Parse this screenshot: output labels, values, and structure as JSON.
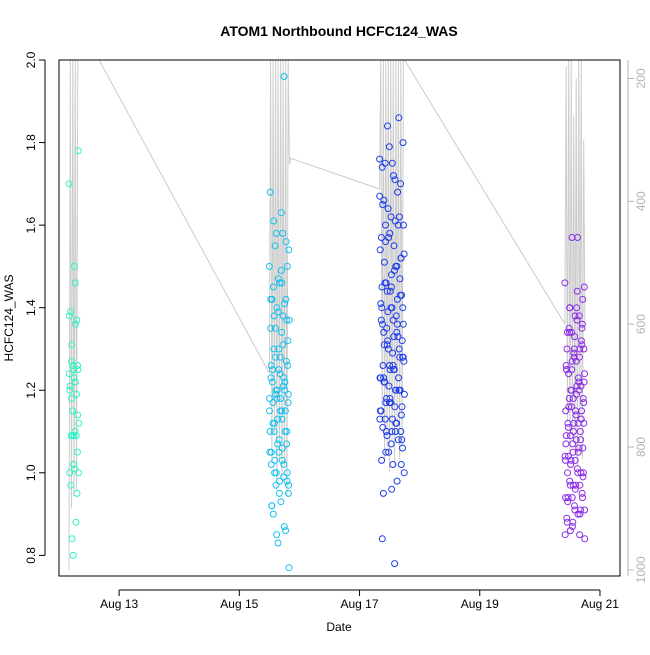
{
  "chart_data": {
    "type": "scatter",
    "title": "ATOM1 Northbound HCFC124_WAS",
    "xlabel": "Date",
    "ylabel": "HCFC124_WAS",
    "x_axis": {
      "type": "date",
      "range": [
        "2016-08-12T00:00",
        "2016-08-21T08:00"
      ],
      "ticks": [
        {
          "value": "2016-08-13",
          "label": "Aug 13"
        },
        {
          "value": "2016-08-15",
          "label": "Aug 15"
        },
        {
          "value": "2016-08-17",
          "label": "Aug 17"
        },
        {
          "value": "2016-08-19",
          "label": "Aug 19"
        },
        {
          "value": "2016-08-21",
          "label": "Aug 21"
        }
      ]
    },
    "y_axis": {
      "range": [
        0.75,
        2.0
      ],
      "ticks": [
        0.8,
        1.0,
        1.2,
        1.4,
        1.6,
        1.8,
        2.0
      ]
    },
    "y2_axis": {
      "description": "pressure (hPa), inverted, gray",
      "range": [
        1010,
        170
      ],
      "ticks": [
        200,
        400,
        600,
        800,
        1000
      ],
      "color": "#b4b4b4"
    },
    "grid": false,
    "legend": "none",
    "flights": [
      {
        "color": "#2ef3c4",
        "t_start": "2016-08-12T04:00",
        "t_end": "2016-08-12T08:00",
        "values": [
          1.7,
          1.46,
          1.27,
          1.26,
          1.25,
          1.2,
          1.09,
          1.09,
          1.0,
          1.01,
          0.97,
          0.95,
          0.8,
          1.38,
          1.36,
          1.31,
          1.25,
          1.23,
          1.21,
          1.19,
          1.15,
          1.12,
          1.1,
          1.09,
          1.05,
          1.02,
          1.0,
          0.88,
          0.84,
          1.78,
          1.5,
          1.39,
          1.37,
          1.26,
          1.24,
          1.22,
          1.18,
          1.14,
          1.09
        ]
      },
      {
        "color": "#14c1f0",
        "t_start": "2016-08-15T12:00",
        "t_end": "2016-08-15T20:00",
        "values": [
          1.5,
          1.46,
          1.38,
          1.37,
          1.3,
          1.26,
          1.23,
          1.2,
          1.19,
          1.18,
          1.17,
          1.15,
          1.13,
          1.1,
          1.06,
          1.03,
          1.0,
          0.98,
          0.92,
          0.87,
          0.85,
          0.77,
          1.63,
          1.61,
          1.56,
          1.47,
          1.42,
          1.38,
          1.35,
          1.32,
          1.28,
          1.25,
          1.22,
          1.2,
          1.18,
          1.15,
          1.12,
          1.1,
          1.08,
          1.05,
          1.02,
          1.0,
          0.97,
          0.93,
          0.9,
          0.86,
          0.83,
          1.68,
          1.58,
          1.55,
          1.5,
          1.46,
          1.42,
          1.41,
          1.4,
          1.37,
          1.34,
          1.3,
          1.27,
          1.25,
          1.23,
          1.21,
          1.19,
          1.17,
          1.15,
          1.12,
          1.1,
          1.07,
          1.05,
          1.03,
          1.0,
          0.98,
          0.95,
          0.92,
          1.96,
          1.58,
          1.54,
          1.49,
          1.45,
          1.42,
          1.39,
          1.35,
          1.31,
          1.28,
          1.26,
          1.24,
          1.22,
          1.2,
          1.18,
          1.15,
          1.13,
          1.1,
          1.07,
          1.05,
          1.02,
          0.99,
          0.97,
          0.95
        ]
      },
      {
        "color": "#1e3ceb",
        "t_start": "2016-08-17T08:00",
        "t_end": "2016-08-17T18:00",
        "values": [
          1.76,
          1.71,
          1.6,
          1.52,
          1.45,
          1.4,
          1.36,
          1.32,
          1.28,
          1.25,
          1.22,
          1.2,
          1.18,
          1.15,
          1.12,
          1.1,
          1.08,
          1.75,
          1.65,
          1.6,
          1.57,
          1.53,
          1.49,
          1.46,
          1.43,
          1.4,
          1.37,
          1.34,
          1.31,
          1.28,
          1.26,
          1.23,
          1.2,
          1.17,
          1.13,
          1.1,
          1.05,
          1.02,
          0.96,
          1.74,
          1.68,
          1.64,
          1.6,
          1.55,
          1.51,
          1.47,
          1.44,
          1.41,
          1.38,
          1.35,
          1.32,
          1.29,
          1.26,
          1.23,
          1.21,
          1.19,
          1.16,
          1.13,
          1.1,
          1.07,
          1.03,
          0.98,
          1.84,
          1.8,
          1.72,
          1.66,
          1.62,
          1.58,
          1.54,
          1.5,
          1.46,
          1.43,
          1.4,
          1.36,
          1.33,
          1.3,
          1.27,
          1.25,
          1.22,
          1.2,
          1.17,
          1.15,
          1.12,
          1.09,
          1.06,
          1.02,
          0.95,
          1.86,
          1.79,
          1.67,
          1.61,
          1.56,
          1.52,
          1.48,
          1.45,
          1.42,
          1.39,
          1.36,
          1.33,
          1.31,
          1.28,
          1.25,
          1.23,
          1.2,
          1.18,
          1.16,
          1.13,
          1.11,
          1.08,
          1.05,
          1.0,
          0.78,
          1.75,
          1.7,
          1.62,
          1.57,
          1.5,
          1.44,
          1.4,
          1.37,
          1.34,
          1.3,
          1.26,
          1.23,
          1.2,
          1.17,
          1.14,
          1.1,
          0.84
        ]
      },
      {
        "color": "#8b2ce8",
        "t_start": "2016-08-20T10:00",
        "t_end": "2016-08-20T18:00",
        "values": [
          1.46,
          1.44,
          1.4,
          1.35,
          1.3,
          1.25,
          1.2,
          1.16,
          1.12,
          1.08,
          1.04,
          1.0,
          0.97,
          0.94,
          0.9,
          0.86,
          1.42,
          1.38,
          1.34,
          1.3,
          1.27,
          1.24,
          1.21,
          1.18,
          1.15,
          1.12,
          1.09,
          1.06,
          1.03,
          1.0,
          0.97,
          0.94,
          0.91,
          0.88,
          0.85,
          1.57,
          1.4,
          1.36,
          1.33,
          1.3,
          1.28,
          1.25,
          1.22,
          1.19,
          1.16,
          1.13,
          1.1,
          1.07,
          1.05,
          1.02,
          0.99,
          0.96,
          0.93,
          0.9,
          0.87,
          0.84,
          1.37,
          1.34,
          1.31,
          1.28,
          1.25,
          1.22,
          1.2,
          1.17,
          1.14,
          1.11,
          1.08,
          1.05,
          1.03,
          1.0,
          0.97,
          0.94,
          0.91,
          0.88,
          0.85,
          1.57,
          1.45,
          1.4,
          1.35,
          1.32,
          1.29,
          1.26,
          1.23,
          1.2,
          1.18,
          1.15,
          1.12,
          1.1,
          1.07,
          1.04,
          1.01,
          0.98,
          0.95,
          0.92,
          0.89,
          1.38,
          1.34,
          1.3,
          1.27,
          1.24,
          1.21,
          1.18,
          1.15,
          1.12,
          1.09,
          1.06,
          1.03,
          1.0,
          0.97,
          0.94,
          0.91
        ]
      }
    ],
    "pressure_trace": {
      "color": "#cccccc",
      "points": [
        [
          "2016-08-12T04:00",
          1000
        ],
        [
          "2016-08-12T04:30",
          170
        ],
        [
          "2016-08-12T05:00",
          900
        ],
        [
          "2016-08-12T05:30",
          170
        ],
        [
          "2016-08-12T06:00",
          880
        ],
        [
          "2016-08-12T06:30",
          170
        ],
        [
          "2016-08-12T07:00",
          870
        ],
        [
          "2016-08-12T07:30",
          170
        ],
        [
          "2016-08-12T08:00",
          170
        ],
        [
          "2016-08-12T16:00",
          170
        ],
        [
          "2016-08-15T12:00",
          680
        ],
        [
          "2016-08-15T12:30",
          170
        ],
        [
          "2016-08-15T13:00",
          820
        ],
        [
          "2016-08-15T13:30",
          170
        ],
        [
          "2016-08-15T14:00",
          780
        ],
        [
          "2016-08-15T14:30",
          170
        ],
        [
          "2016-08-15T15:00",
          870
        ],
        [
          "2016-08-15T15:30",
          170
        ],
        [
          "2016-08-15T16:00",
          820
        ],
        [
          "2016-08-15T16:30",
          170
        ],
        [
          "2016-08-15T17:00",
          850
        ],
        [
          "2016-08-15T17:30",
          170
        ],
        [
          "2016-08-15T18:00",
          830
        ],
        [
          "2016-08-15T18:30",
          170
        ],
        [
          "2016-08-15T19:00",
          880
        ],
        [
          "2016-08-15T19:30",
          170
        ],
        [
          "2016-08-15T20:00",
          340
        ],
        [
          "2016-08-15T20:30",
          330
        ],
        [
          "2016-08-17T08:00",
          380
        ],
        [
          "2016-08-17T08:30",
          170
        ],
        [
          "2016-08-17T09:00",
          760
        ],
        [
          "2016-08-17T09:30",
          170
        ],
        [
          "2016-08-17T10:00",
          820
        ],
        [
          "2016-08-17T10:30",
          170
        ],
        [
          "2016-08-17T11:00",
          800
        ],
        [
          "2016-08-17T11:30",
          170
        ],
        [
          "2016-08-17T12:00",
          840
        ],
        [
          "2016-08-17T12:30",
          170
        ],
        [
          "2016-08-17T13:00",
          790
        ],
        [
          "2016-08-17T13:30",
          170
        ],
        [
          "2016-08-17T14:00",
          830
        ],
        [
          "2016-08-17T14:30",
          170
        ],
        [
          "2016-08-17T15:00",
          780
        ],
        [
          "2016-08-17T15:30",
          170
        ],
        [
          "2016-08-17T16:00",
          820
        ],
        [
          "2016-08-17T16:30",
          170
        ],
        [
          "2016-08-17T17:00",
          800
        ],
        [
          "2016-08-17T17:30",
          170
        ],
        [
          "2016-08-17T18:00",
          170
        ],
        [
          "2016-08-20T10:00",
          600
        ],
        [
          "2016-08-20T10:30",
          180
        ],
        [
          "2016-08-20T11:00",
          760
        ],
        [
          "2016-08-20T11:30",
          170
        ],
        [
          "2016-08-20T12:00",
          820
        ],
        [
          "2016-08-20T12:30",
          170
        ],
        [
          "2016-08-20T13:00",
          780
        ],
        [
          "2016-08-20T13:30",
          260
        ],
        [
          "2016-08-20T14:00",
          800
        ],
        [
          "2016-08-20T14:30",
          200
        ],
        [
          "2016-08-20T15:00",
          830
        ],
        [
          "2016-08-20T15:30",
          170
        ],
        [
          "2016-08-20T16:00",
          760
        ],
        [
          "2016-08-20T16:30",
          170
        ],
        [
          "2016-08-20T17:00",
          820
        ],
        [
          "2016-08-20T17:30",
          300
        ],
        [
          "2016-08-20T18:00",
          600
        ]
      ]
    }
  }
}
